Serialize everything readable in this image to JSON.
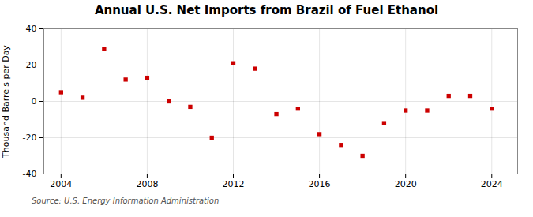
{
  "chart_data": {
    "type": "scatter",
    "title": "Annual U.S. Net Imports from Brazil of Fuel Ethanol",
    "ylabel": "Thousand Barrels per Day",
    "annotations": [
      "Source: U.S. Energy Information Administration"
    ],
    "x": [
      2004,
      2005,
      2006,
      2007,
      2008,
      2009,
      2010,
      2011,
      2012,
      2013,
      2014,
      2015,
      2016,
      2017,
      2018,
      2019,
      2020,
      2021,
      2022,
      2023,
      2024
    ],
    "values": [
      5,
      2,
      29,
      12,
      13,
      0,
      -3,
      -20,
      21,
      18,
      -7,
      -4,
      -18,
      -24,
      -30,
      -12,
      -5,
      -5,
      3,
      3,
      -4
    ],
    "color": "#cc0000",
    "marker": "square",
    "xlim": [
      2003.2,
      2025.2
    ],
    "xticks": [
      2004,
      2008,
      2012,
      2016,
      2020,
      2024
    ],
    "ylim": [
      -40,
      40
    ],
    "yticks": [
      -40,
      -20,
      0,
      20,
      40
    ],
    "grid": true
  }
}
